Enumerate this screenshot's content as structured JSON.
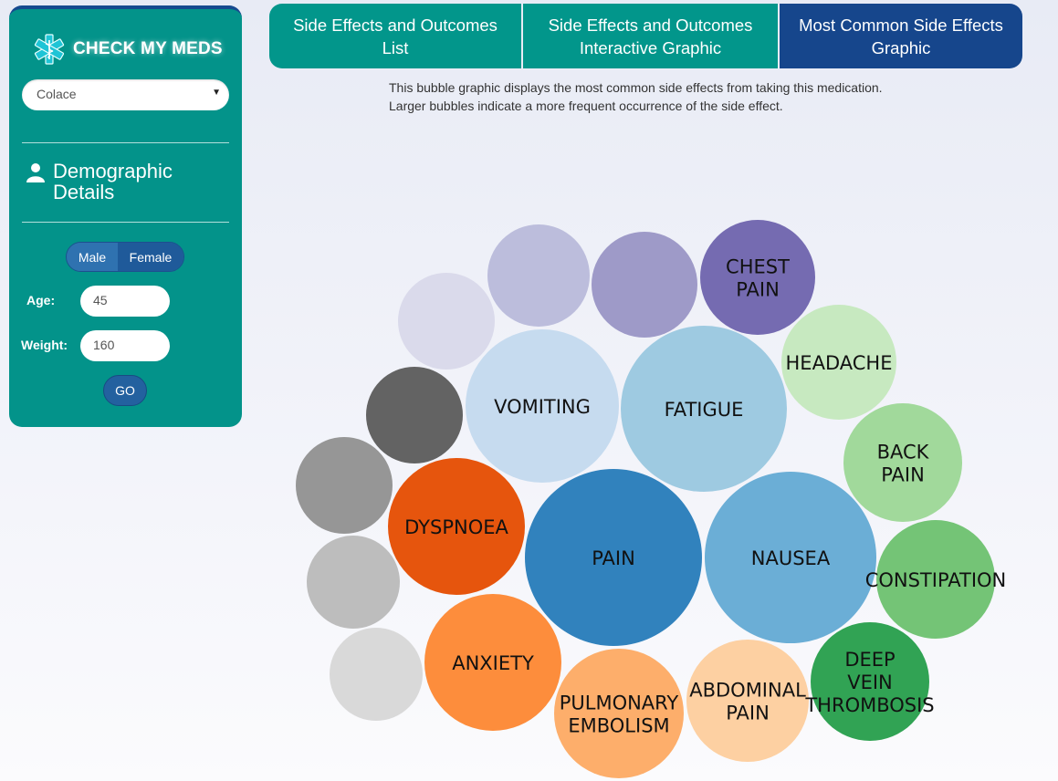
{
  "sidebar": {
    "logo_text": "CHECK MY MEDS",
    "medication_selected": "Colace",
    "demographic_title_line1": "Demographic",
    "demographic_title_line2": "Details",
    "gender_options": [
      "Male",
      "Female"
    ],
    "gender_selected": "Male",
    "age_label": "Age:",
    "age_value": "45",
    "weight_label": "Weight:",
    "weight_value": "160",
    "go_label": "GO"
  },
  "tabs": [
    {
      "label_line1": "Side Effects and Outcomes",
      "label_line2": "List",
      "active": false
    },
    {
      "label_line1": "Side Effects and Outcomes",
      "label_line2": "Interactive Graphic",
      "active": false
    },
    {
      "label_line1": "Most Common Side Effects",
      "label_line2": "Graphic",
      "active": true
    }
  ],
  "description": "This bubble graphic displays the most common side effects from taking this medication. Larger bubbles indicate a more frequent occurrence of the side effect.",
  "colors": {
    "teal": "#03938a",
    "navy": "#16468c"
  },
  "bubbles": [
    {
      "label": [
        "PAIN"
      ],
      "color": "#3182bd"
    },
    {
      "label": [
        "NAUSEA"
      ],
      "color": "#6baed6"
    },
    {
      "label": [
        "FATIGUE"
      ],
      "color": "#9ecae1"
    },
    {
      "label": [
        "VOMITING"
      ],
      "color": "#c6dbef"
    },
    {
      "label": [
        "DYSPNOEA"
      ],
      "color": "#e6550d"
    },
    {
      "label": [
        "ANXIETY"
      ],
      "color": "#fd8d3c"
    },
    {
      "label": [
        "PULMONARY",
        "EMBOLISM"
      ],
      "color": "#fdae6b"
    },
    {
      "label": [
        "ABDOMINAL",
        "PAIN"
      ],
      "color": "#fdd0a2"
    },
    {
      "label": [
        "DEEP",
        "VEIN",
        "THROMBOSIS"
      ],
      "color": "#31a354"
    },
    {
      "label": [
        "CONSTIPATION"
      ],
      "color": "#74c476"
    },
    {
      "label": [
        "BACK",
        "PAIN"
      ],
      "color": "#a1d99b"
    },
    {
      "label": [
        "HEADACHE"
      ],
      "color": "#c7e9c0"
    },
    {
      "label": [
        "CHEST",
        "PAIN"
      ],
      "color": "#756bb1"
    },
    {
      "label": [],
      "color": "#9e9ac8"
    },
    {
      "label": [],
      "color": "#bcbddc"
    },
    {
      "label": [],
      "color": "#dadaeb"
    },
    {
      "label": [],
      "color": "#636363"
    },
    {
      "label": [],
      "color": "#969696"
    },
    {
      "label": [],
      "color": "#bdbdbd"
    },
    {
      "label": [],
      "color": "#d9d9d9"
    }
  ]
}
